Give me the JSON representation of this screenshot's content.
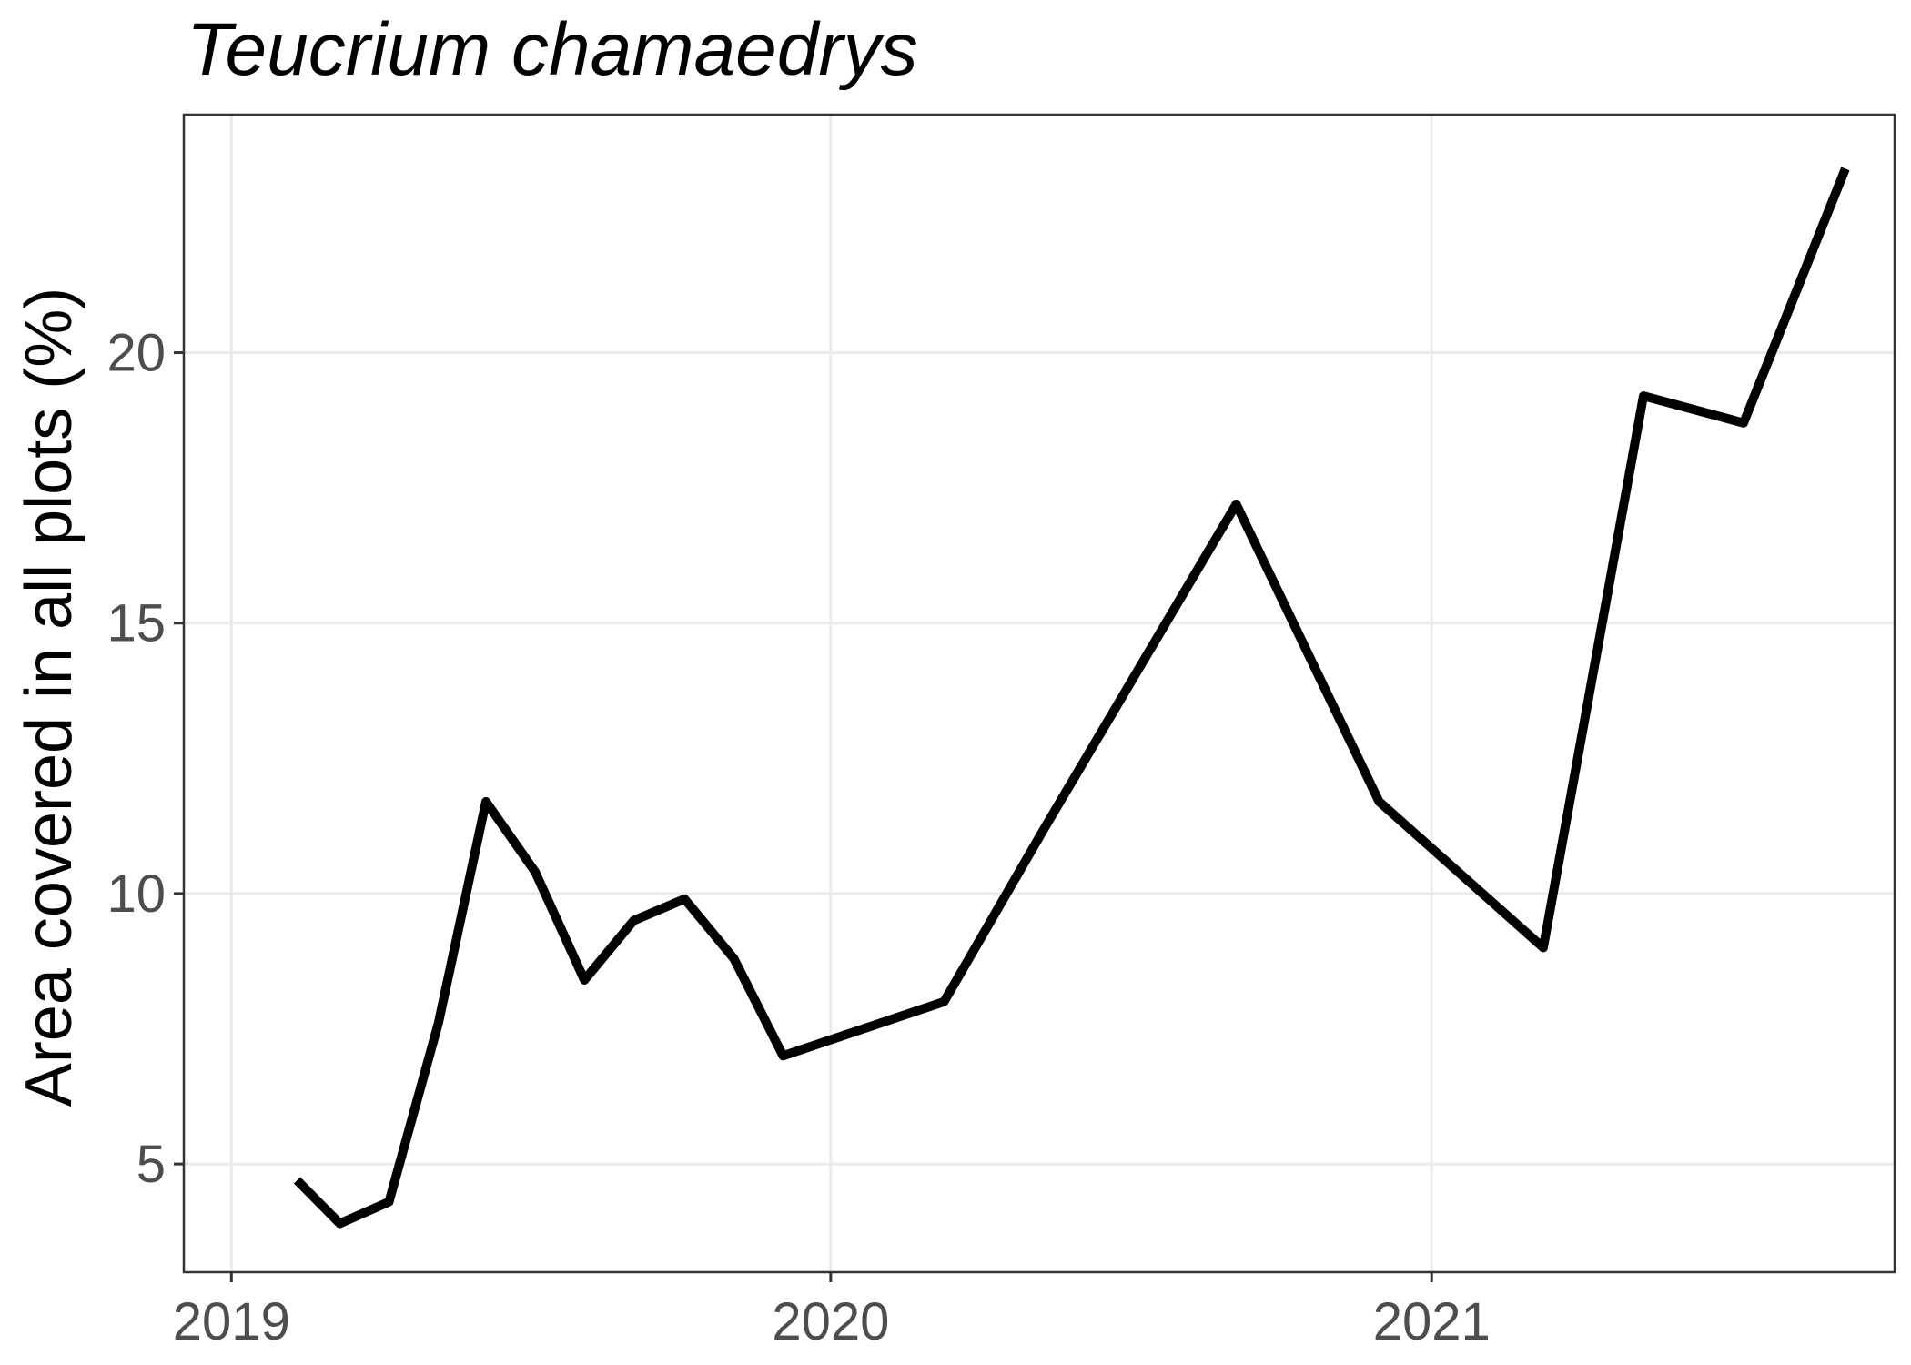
{
  "chart_data": {
    "type": "line",
    "title": "Teucrium chamaedrys",
    "xlabel": "",
    "ylabel": "Area covered in all plots (%)",
    "x_axis": {
      "type": "date",
      "range": [
        "2018-12-03",
        "2021-10-10"
      ],
      "ticks": [
        {
          "value": "2019-01-01",
          "label": "2019"
        },
        {
          "value": "2020-01-01",
          "label": "2020"
        },
        {
          "value": "2021-01-01",
          "label": "2021"
        }
      ]
    },
    "y_axis": {
      "range": [
        3.0,
        24.4
      ],
      "ticks": [
        5,
        10,
        15,
        20
      ]
    },
    "grid": true,
    "legend": "none",
    "line_color": "#000000",
    "series": [
      {
        "x": [
          "2019-02-10",
          "2019-03-08",
          "2019-04-07",
          "2019-05-07",
          "2019-06-05",
          "2019-07-05",
          "2019-08-04",
          "2019-09-03",
          "2019-10-04",
          "2019-11-03",
          "2019-12-03",
          "2020-03-10",
          "2020-05-10",
          "2020-09-04",
          "2020-11-30",
          "2021-03-10",
          "2021-05-10",
          "2021-07-10",
          "2021-09-10"
        ],
        "values": [
          4.7,
          3.9,
          4.3,
          7.6,
          11.7,
          10.4,
          8.4,
          9.5,
          9.9,
          8.8,
          7.0,
          8.0,
          11.2,
          17.2,
          11.7,
          9.0,
          19.2,
          18.7,
          23.4
        ]
      }
    ]
  }
}
